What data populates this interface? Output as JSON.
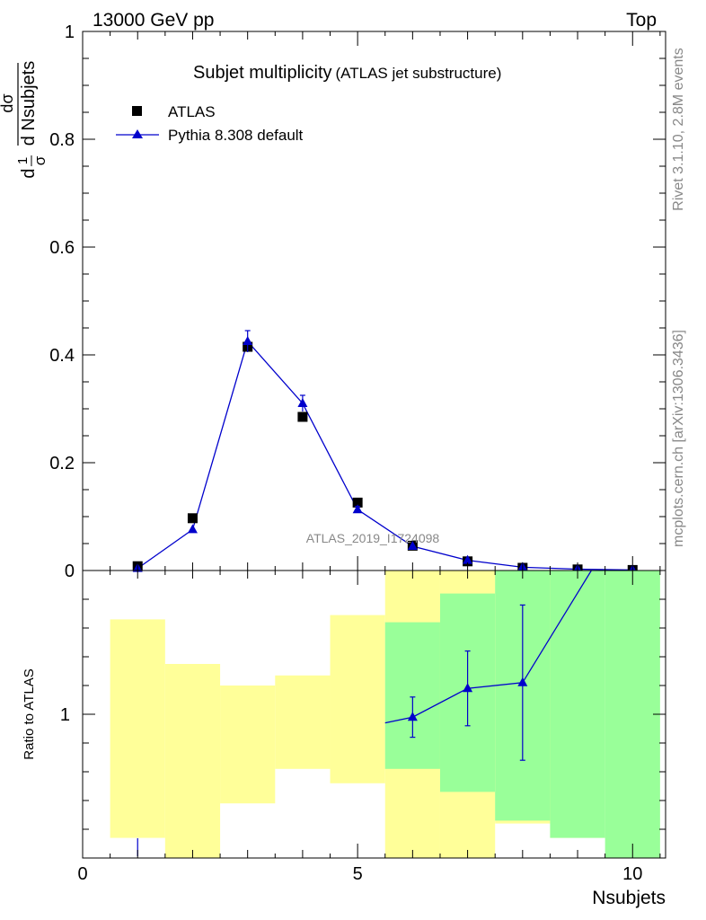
{
  "header": {
    "left": "13000 GeV pp",
    "right": "Top"
  },
  "side_labels": {
    "rivet": "Rivet 3.1.10,  2.8M events",
    "mcplots": "mcplots.cern.ch [arXiv:1306.3436]"
  },
  "chart_data": {
    "type": "line",
    "title": "Subjet multiplicity",
    "subtitle": "(ATLAS jet substructure)",
    "watermark": "ATLAS_2019_I1724098",
    "ylabel_numerator": "1",
    "ylabel_denominator": "σ",
    "ylabel_fraction_top": "dσ",
    "ylabel_fraction_bottom": "d Nsubjets",
    "ylabel_d": "d",
    "xlabel": "Nsubjets",
    "xlim": [
      0,
      10.6
    ],
    "ylim": [
      0,
      1.0
    ],
    "x_ticks": [
      "0",
      "5",
      "10"
    ],
    "y_ticks": [
      "0",
      "0.2",
      "0.4",
      "0.6",
      "0.8",
      "1"
    ],
    "legend": [
      "ATLAS",
      "Pythia 8.308 default"
    ],
    "series": [
      {
        "name": "ATLAS",
        "x": [
          1,
          2,
          3,
          4,
          5,
          6,
          7,
          8,
          9,
          10
        ],
        "y": [
          0.008,
          0.097,
          0.415,
          0.285,
          0.126,
          0.046,
          0.017,
          0.005,
          0.002,
          0.001
        ],
        "color": "#000000",
        "marker": "square"
      },
      {
        "name": "Pythia 8.308 default",
        "x": [
          1,
          2,
          3,
          4,
          5,
          6,
          7,
          8,
          9,
          10
        ],
        "y": [
          0.004,
          0.076,
          0.425,
          0.31,
          0.113,
          0.045,
          0.019,
          0.006,
          0.0025,
          0.001
        ],
        "yerr": [
          0.001,
          0.004,
          0.02,
          0.015,
          0.006,
          0.002,
          0.001,
          0.0005,
          0.0003,
          0.0002
        ],
        "color": "#0000cc",
        "marker": "triangle"
      }
    ],
    "ratio": {
      "ylabel": "Ratio to ATLAS",
      "y_ticks": [
        "1"
      ],
      "ylim": [
        0.5,
        1.5
      ],
      "bands": [
        {
          "x0": 0.5,
          "x1": 1.5,
          "yellow": [
            0.57,
            1.33
          ],
          "green": null
        },
        {
          "x0": 1.5,
          "x1": 2.5,
          "yellow": [
            0.5,
            1.175
          ],
          "green": null
        },
        {
          "x0": 2.5,
          "x1": 3.5,
          "yellow": [
            0.69,
            1.1
          ],
          "green": null
        },
        {
          "x0": 3.5,
          "x1": 4.5,
          "yellow": [
            0.81,
            1.135
          ],
          "green": null
        },
        {
          "x0": 4.5,
          "x1": 5.5,
          "yellow": [
            0.76,
            1.345
          ],
          "green": null
        },
        {
          "x0": 5.5,
          "x1": 6.5,
          "yellow": [
            0.5,
            1.5
          ],
          "green": [
            0.81,
            1.32
          ]
        },
        {
          "x0": 6.5,
          "x1": 7.5,
          "yellow": [
            0.5,
            1.5
          ],
          "green": [
            0.73,
            1.42
          ]
        },
        {
          "x0": 7.5,
          "x1": 8.5,
          "yellow": [
            0.62,
            1.5
          ],
          "green": [
            0.63,
            1.5
          ]
        },
        {
          "x0": 8.5,
          "x1": 9.5,
          "yellow": [
            0.57,
            1.5
          ],
          "green": [
            0.57,
            1.5
          ]
        },
        {
          "x0": 9.5,
          "x1": 10.5,
          "yellow": null,
          "green": [
            0.5,
            1.5
          ]
        }
      ],
      "points": {
        "x": [
          6,
          7,
          8
        ],
        "y": [
          0.99,
          1.09,
          1.11
        ],
        "yerr": [
          0.07,
          0.13,
          0.27
        ]
      },
      "line_x": [
        5.5,
        6,
        7,
        8,
        9.25
      ],
      "line_y": [
        0.97,
        0.99,
        1.09,
        1.11,
        1.5
      ],
      "low_marker": {
        "x": 1,
        "y": 0.5
      }
    }
  }
}
